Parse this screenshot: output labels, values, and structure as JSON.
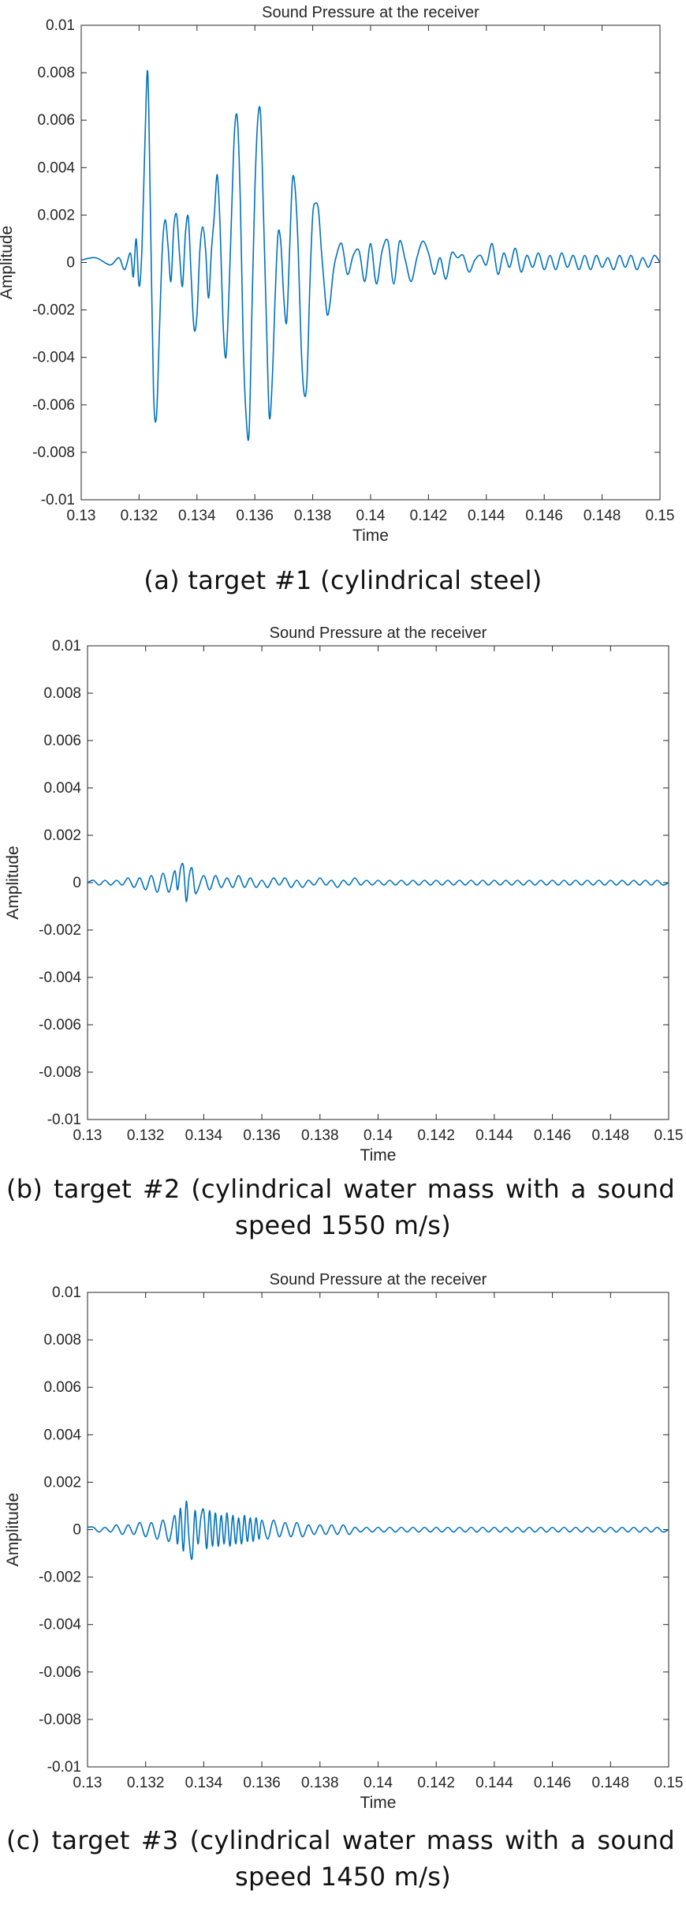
{
  "captions": [
    {
      "line1": "(a) target #1 (cylindrical steel)",
      "line2": ""
    },
    {
      "line1": "(b) target #2 (cylindrical water mass with a sound",
      "line2": "speed 1550 m/s)"
    },
    {
      "line1": "(c) target #3 (cylindrical water mass with a sound",
      "line2": "speed 1450 m/s)"
    }
  ],
  "line_color": "#0072BD",
  "chart_data": [
    {
      "type": "line",
      "title": "Sound Pressure at the receiver",
      "xlabel": "Time",
      "ylabel": "Amplitude",
      "xlim": [
        0.13,
        0.15
      ],
      "ylim": [
        -0.01,
        0.01
      ],
      "grid": false,
      "x_ticks": [
        "0.13",
        "0.132",
        "0.134",
        "0.136",
        "0.138",
        "0.14",
        "0.142",
        "0.144",
        "0.146",
        "0.148",
        "0.15"
      ],
      "y_ticks": [
        "-0.01",
        "-0.008",
        "-0.006",
        "-0.004",
        "-0.002",
        "0",
        "0.002",
        "0.004",
        "0.006",
        "0.008",
        "0.01"
      ],
      "series": [
        {
          "x": [
            0.13,
            0.1305,
            0.131,
            0.1313,
            0.1315,
            0.1317,
            0.1318,
            0.1319,
            0.132,
            0.1321,
            0.1322,
            0.1323,
            0.1324,
            0.1325,
            0.1326,
            0.1327,
            0.1328,
            0.1329,
            0.133,
            0.1331,
            0.1332,
            0.1333,
            0.1334,
            0.1335,
            0.1336,
            0.1337,
            0.1338,
            0.1339,
            0.134,
            0.1341,
            0.1342,
            0.1343,
            0.1344,
            0.1345,
            0.1346,
            0.1347,
            0.1348,
            0.1349,
            0.135,
            0.1351,
            0.1352,
            0.1353,
            0.1354,
            0.1355,
            0.1356,
            0.1357,
            0.1358,
            0.1359,
            0.136,
            0.1361,
            0.1362,
            0.1363,
            0.1364,
            0.1365,
            0.1366,
            0.1367,
            0.1368,
            0.1369,
            0.137,
            0.1371,
            0.1372,
            0.1373,
            0.1374,
            0.1375,
            0.1376,
            0.1377,
            0.1378,
            0.1379,
            0.138,
            0.1381,
            0.1382,
            0.1383,
            0.1384,
            0.1385,
            0.1386,
            0.1387,
            0.1388,
            0.139,
            0.1392,
            0.1394,
            0.1396,
            0.1398,
            0.14,
            0.1402,
            0.1404,
            0.1406,
            0.1408,
            0.141,
            0.1412,
            0.1414,
            0.1416,
            0.1418,
            0.142,
            0.1422,
            0.1424,
            0.1426,
            0.1428,
            0.143,
            0.1432,
            0.1434,
            0.1436,
            0.1438,
            0.144,
            0.1442,
            0.1444,
            0.1446,
            0.1448,
            0.145,
            0.1452,
            0.1454,
            0.1456,
            0.1458,
            0.146,
            0.1462,
            0.1464,
            0.1466,
            0.1468,
            0.147,
            0.1472,
            0.1474,
            0.1476,
            0.1478,
            0.148,
            0.1482,
            0.1484,
            0.1486,
            0.1488,
            0.149,
            0.1492,
            0.1494,
            0.1496,
            0.1498,
            0.15
          ],
          "y": [
            0.0001,
            0.0002,
            -0.0001,
            0.0002,
            -0.0003,
            0.0004,
            -0.0006,
            0.001,
            -0.001,
            0.0006,
            0.005,
            0.008,
            0.0015,
            -0.0055,
            -0.0065,
            -0.003,
            0.0005,
            0.0018,
            0.0007,
            -0.0008,
            0.0015,
            0.002,
            0.0003,
            -0.001,
            0.0012,
            0.0019,
            -0.0006,
            -0.0028,
            -0.0022,
            0.0005,
            0.0015,
            0.0005,
            -0.0015,
            0.0005,
            0.002,
            0.0037,
            0.0015,
            -0.0025,
            -0.004,
            -0.0015,
            0.0022,
            0.0056,
            0.006,
            0.0025,
            -0.0035,
            -0.0065,
            -0.0072,
            -0.002,
            0.003,
            0.006,
            0.0062,
            0.002,
            -0.0025,
            -0.0065,
            -0.005,
            -0.0015,
            0.0012,
            0.0008,
            -0.0015,
            -0.0025,
            0.0005,
            0.0035,
            0.003,
            0.0005,
            -0.0035,
            -0.0055,
            -0.005,
            -0.001,
            0.002,
            0.0025,
            0.0022,
            0.0005,
            -0.001,
            -0.0022,
            -0.0017,
            -0.0005,
            0.0002,
            0.0008,
            -0.0005,
            0.0003,
            0.0005,
            -0.0008,
            0.0008,
            -0.0009,
            0.0005,
            0.0009,
            -0.0009,
            0.0009,
            0.0001,
            -0.0008,
            0.0002,
            0.0009,
            0.0004,
            -0.0005,
            0.0002,
            -0.0007,
            0.0004,
            0.0002,
            0.0003,
            -0.0004,
            0.0001,
            0.0003,
            -0.0001,
            0.0008,
            -0.0005,
            0.0004,
            -0.0002,
            0.0006,
            -0.0004,
            0.0003,
            -0.0002,
            0.0004,
            -0.0003,
            0.0003,
            -0.0003,
            0.0004,
            -0.0002,
            0.0003,
            -0.0003,
            0.0003,
            -0.0003,
            0.0003,
            -0.0002,
            0.0002,
            -0.0003,
            0.0003,
            -0.0002,
            0.0003,
            -0.0003,
            0.0002,
            -0.0002,
            0.0003,
            0.0
          ]
        }
      ]
    },
    {
      "type": "line",
      "title": "Sound Pressure at the receiver",
      "xlabel": "Time",
      "ylabel": "Amplitude",
      "xlim": [
        0.13,
        0.15
      ],
      "ylim": [
        -0.01,
        0.01
      ],
      "grid": false,
      "x_ticks": [
        "0.13",
        "0.132",
        "0.134",
        "0.136",
        "0.138",
        "0.14",
        "0.142",
        "0.144",
        "0.146",
        "0.148",
        "0.15"
      ],
      "y_ticks": [
        "-0.01",
        "-0.008",
        "-0.006",
        "-0.004",
        "-0.002",
        "0",
        "0.002",
        "0.004",
        "0.006",
        "0.008",
        "0.01"
      ],
      "series": [
        {
          "x": [
            0.13,
            0.1302,
            0.1304,
            0.1306,
            0.1308,
            0.131,
            0.1312,
            0.1314,
            0.1316,
            0.1318,
            0.132,
            0.1322,
            0.1324,
            0.1326,
            0.1328,
            0.133,
            0.1331,
            0.1332,
            0.1333,
            0.1334,
            0.1335,
            0.1336,
            0.1337,
            0.1338,
            0.134,
            0.1342,
            0.1344,
            0.1346,
            0.1348,
            0.135,
            0.1352,
            0.1354,
            0.1356,
            0.1358,
            0.136,
            0.1362,
            0.1364,
            0.1366,
            0.1368,
            0.137,
            0.1372,
            0.1374,
            0.1376,
            0.1378,
            0.138,
            0.1382,
            0.1384,
            0.1386,
            0.1388,
            0.139,
            0.1392,
            0.1394,
            0.1396,
            0.1398,
            0.14,
            0.1402,
            0.1404,
            0.1406,
            0.1408,
            0.141,
            0.1412,
            0.1414,
            0.1416,
            0.1418,
            0.142,
            0.1422,
            0.1424,
            0.1426,
            0.1428,
            0.143,
            0.1432,
            0.1434,
            0.1436,
            0.1438,
            0.144,
            0.1442,
            0.1444,
            0.1446,
            0.1448,
            0.145,
            0.1452,
            0.1454,
            0.1456,
            0.1458,
            0.146,
            0.1462,
            0.1464,
            0.1466,
            0.1468,
            0.147,
            0.1472,
            0.1474,
            0.1476,
            0.1478,
            0.148,
            0.1482,
            0.1484,
            0.1486,
            0.1488,
            0.149,
            0.1492,
            0.1494,
            0.1496,
            0.1498,
            0.15
          ],
          "y": [
            0.0,
            0.0001,
            -0.0001,
            0.0001,
            -0.0001,
            0.0001,
            -0.0001,
            0.0002,
            -0.0002,
            0.0002,
            -0.0003,
            0.0003,
            -0.0004,
            0.0004,
            -0.0004,
            0.0005,
            -0.0003,
            0.0006,
            0.0007,
            -0.0008,
            0.0003,
            0.0006,
            -0.0004,
            -0.0003,
            0.0003,
            -0.0003,
            0.0003,
            -0.0002,
            0.0002,
            -0.0002,
            0.0003,
            -0.0002,
            0.0002,
            -0.0002,
            0.0001,
            -0.0002,
            0.0002,
            -0.0001,
            0.0002,
            -0.0002,
            0.0001,
            -0.0002,
            0.0001,
            -0.0001,
            0.0002,
            -0.0001,
            0.0001,
            -0.0002,
            0.0001,
            -0.0001,
            0.0002,
            -0.0001,
            0.0001,
            -0.0001,
            0.0001,
            -0.0001,
            0.0001,
            -0.0001,
            0.0001,
            -0.0001,
            0.0001,
            -0.0001,
            0.0001,
            -0.0001,
            0.0001,
            -0.0001,
            0.0001,
            -0.0001,
            0.0001,
            -0.0001,
            0.0001,
            -0.0001,
            0.0001,
            -0.0001,
            0.0001,
            -0.0001,
            0.0001,
            -0.0001,
            0.0001,
            -0.0001,
            0.0001,
            -0.0001,
            0.0001,
            -0.0001,
            0.0001,
            -0.0001,
            0.0001,
            -0.0001,
            0.0001,
            -0.0001,
            0.0001,
            -0.0001,
            0.0001,
            -0.0001,
            0.0001,
            -0.0001,
            0.0001,
            -0.0001,
            0.0001,
            -0.0001,
            0.0001,
            -0.0001,
            0.0001,
            -0.0001,
            0.0
          ]
        }
      ]
    },
    {
      "type": "line",
      "title": "Sound Pressure at the receiver",
      "xlabel": "Time",
      "ylabel": "Amplitude",
      "xlim": [
        0.13,
        0.15
      ],
      "ylim": [
        -0.01,
        0.01
      ],
      "grid": false,
      "x_ticks": [
        "0.13",
        "0.132",
        "0.134",
        "0.136",
        "0.138",
        "0.14",
        "0.142",
        "0.144",
        "0.146",
        "0.148",
        "0.15"
      ],
      "y_ticks": [
        "-0.01",
        "-0.008",
        "-0.006",
        "-0.004",
        "-0.002",
        "0",
        "0.002",
        "0.004",
        "0.006",
        "0.008",
        "0.01"
      ],
      "series": [
        {
          "x": [
            0.13,
            0.1302,
            0.1304,
            0.1306,
            0.1308,
            0.131,
            0.1312,
            0.1314,
            0.1316,
            0.1318,
            0.132,
            0.1322,
            0.1324,
            0.1326,
            0.1328,
            0.133,
            0.1331,
            0.1332,
            0.1333,
            0.1334,
            0.1335,
            0.1336,
            0.1337,
            0.1338,
            0.1339,
            0.134,
            0.1341,
            0.1342,
            0.1343,
            0.1344,
            0.1345,
            0.1346,
            0.1347,
            0.1348,
            0.1349,
            0.135,
            0.1351,
            0.1352,
            0.1353,
            0.1354,
            0.1355,
            0.1356,
            0.1357,
            0.1358,
            0.1359,
            0.136,
            0.1362,
            0.1364,
            0.1366,
            0.1368,
            0.137,
            0.1372,
            0.1374,
            0.1376,
            0.1378,
            0.138,
            0.1382,
            0.1384,
            0.1386,
            0.1388,
            0.139,
            0.1392,
            0.1394,
            0.1396,
            0.1398,
            0.14,
            0.1402,
            0.1404,
            0.1406,
            0.1408,
            0.141,
            0.1412,
            0.1414,
            0.1416,
            0.1418,
            0.142,
            0.1422,
            0.1424,
            0.1426,
            0.1428,
            0.143,
            0.1432,
            0.1434,
            0.1436,
            0.1438,
            0.144,
            0.1442,
            0.1444,
            0.1446,
            0.1448,
            0.145,
            0.1452,
            0.1454,
            0.1456,
            0.1458,
            0.146,
            0.1462,
            0.1464,
            0.1466,
            0.1468,
            0.147,
            0.1472,
            0.1474,
            0.1476,
            0.1478,
            0.148,
            0.1482,
            0.1484,
            0.1486,
            0.1488,
            0.149,
            0.1492,
            0.1494,
            0.1496,
            0.1498,
            0.15
          ],
          "y": [
            0.0001,
            0.0001,
            -0.0001,
            0.0001,
            -0.0001,
            0.0002,
            -0.0002,
            0.0002,
            -0.0002,
            0.0003,
            -0.0003,
            0.0003,
            -0.0004,
            0.0004,
            -0.0005,
            0.0006,
            -0.0006,
            0.0009,
            -0.0009,
            0.0012,
            -0.0005,
            -0.0012,
            0.0008,
            -0.0006,
            0.0005,
            0.0008,
            -0.0008,
            0.0008,
            -0.0007,
            0.0007,
            -0.0007,
            0.0006,
            -0.0006,
            0.0007,
            -0.0007,
            0.0006,
            -0.0006,
            0.0005,
            -0.0006,
            0.0006,
            -0.0005,
            0.0005,
            -0.0005,
            0.0005,
            -0.0004,
            0.0004,
            -0.0004,
            0.0004,
            -0.0003,
            0.0003,
            -0.0003,
            0.0003,
            -0.0003,
            0.0002,
            -0.0002,
            0.0002,
            -0.0002,
            0.0002,
            -0.0002,
            0.0002,
            -0.0002,
            0.0001,
            -0.0001,
            0.0001,
            -0.0001,
            0.0001,
            -0.0001,
            0.0001,
            -0.0001,
            0.0001,
            -0.0001,
            0.0001,
            -0.0001,
            0.0001,
            -0.0001,
            0.0001,
            -0.0001,
            0.0001,
            -0.0001,
            0.0001,
            -0.0001,
            0.0001,
            -0.0001,
            0.0001,
            -0.0001,
            0.0001,
            -0.0001,
            0.0001,
            -0.0001,
            0.0001,
            -0.0001,
            0.0001,
            -0.0001,
            0.0001,
            -0.0001,
            0.0001,
            -0.0001,
            0.0001,
            -0.0001,
            0.0001,
            -0.0001,
            0.0001,
            -0.0001,
            0.0001,
            -0.0001,
            0.0001,
            -0.0001,
            0.0001,
            -0.0001,
            0.0001,
            -0.0001,
            0.0001,
            -0.0001,
            0.0001,
            -0.0001,
            0.0
          ]
        }
      ]
    }
  ]
}
